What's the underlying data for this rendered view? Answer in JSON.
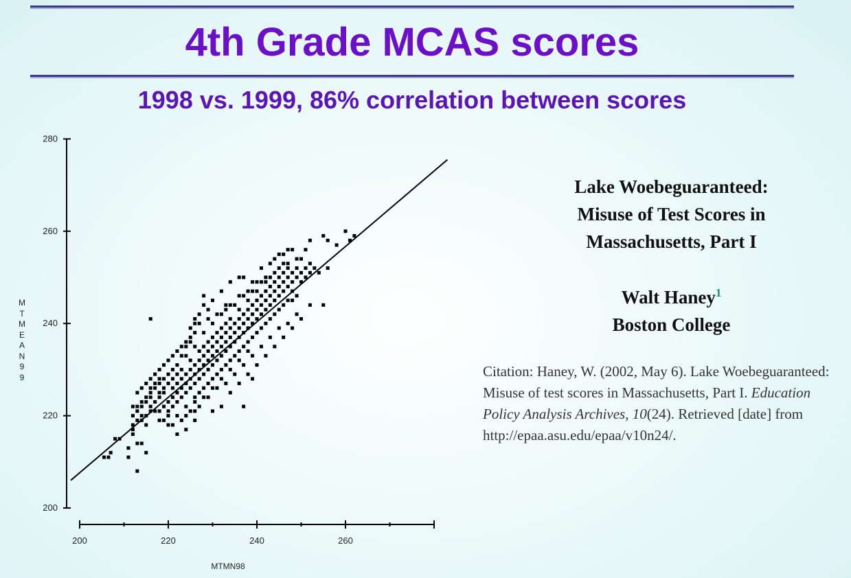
{
  "slide": {
    "title": "4th Grade MCAS scores",
    "subtitle": "1998 vs. 1999, 86% correlation between scores"
  },
  "paper": {
    "title": "Lake Woebeguaranteed:\nMisuse of Test Scores in\nMassachusetts, Part I",
    "author": "Walt Haney",
    "footnote_mark": "1",
    "affiliation": "Boston College"
  },
  "citation": {
    "prefix": "Citation: Haney, W. (2002, May 6). Lake Woebeguaranteed: Misuse of test scores in Massachusetts, Part I. ",
    "journal": "Education Policy Analysis Archives, 10",
    "issue": "(24). Retrieved [date] from http://epaa.asu.edu/epaa/v10n24/."
  },
  "chart_data": {
    "type": "scatter",
    "xlabel": "MTMN98",
    "ylabel": "MTMEAN99",
    "xlim": [
      200,
      280
    ],
    "ylim": [
      200,
      280
    ],
    "x_ticks": [
      200,
      220,
      240,
      260
    ],
    "y_ticks": [
      200,
      220,
      240,
      260,
      280
    ],
    "fit_line": {
      "x": [
        198,
        283
      ],
      "y": [
        206.0,
        275.5
      ]
    },
    "series": [
      {
        "points": [
          [
            205.5,
            211
          ],
          [
            206.5,
            211
          ],
          [
            207,
            212
          ],
          [
            208,
            215
          ],
          [
            209,
            215
          ],
          [
            212,
            220
          ],
          [
            212,
            222
          ],
          [
            212,
            217
          ],
          [
            213,
            208
          ],
          [
            213,
            214
          ],
          [
            214,
            219
          ],
          [
            214,
            214
          ],
          [
            215,
            212
          ],
          [
            216,
            241
          ],
          [
            212,
            216
          ],
          [
            211,
            211
          ],
          [
            211,
            213
          ],
          [
            213,
            222
          ],
          [
            214,
            223
          ],
          [
            215,
            224
          ],
          [
            215,
            220
          ],
          [
            216,
            226
          ],
          [
            216,
            222
          ],
          [
            217,
            227
          ],
          [
            217,
            221
          ],
          [
            218,
            219
          ],
          [
            218,
            224
          ],
          [
            219,
            225
          ],
          [
            219,
            222
          ],
          [
            220,
            221
          ],
          [
            220,
            223
          ],
          [
            221,
            226
          ],
          [
            221,
            224
          ],
          [
            221,
            222
          ],
          [
            222,
            223
          ],
          [
            222,
            225
          ],
          [
            222,
            227
          ],
          [
            223,
            228
          ],
          [
            223,
            226
          ],
          [
            223,
            224
          ],
          [
            224,
            225
          ],
          [
            224,
            227
          ],
          [
            224,
            229
          ],
          [
            225,
            226
          ],
          [
            225,
            228
          ],
          [
            225,
            230
          ],
          [
            226,
            224
          ],
          [
            226,
            227
          ],
          [
            226,
            229
          ],
          [
            226,
            231
          ],
          [
            227,
            228
          ],
          [
            227,
            230
          ],
          [
            227,
            232
          ],
          [
            227,
            225
          ],
          [
            228,
            229
          ],
          [
            228,
            231
          ],
          [
            228,
            233
          ],
          [
            228,
            235
          ],
          [
            229,
            230
          ],
          [
            229,
            232
          ],
          [
            229,
            234
          ],
          [
            229,
            227
          ],
          [
            230,
            231
          ],
          [
            230,
            233
          ],
          [
            230,
            235
          ],
          [
            230,
            237
          ],
          [
            231,
            232
          ],
          [
            231,
            234
          ],
          [
            231,
            236
          ],
          [
            231,
            229
          ],
          [
            232,
            233
          ],
          [
            232,
            235
          ],
          [
            232,
            237
          ],
          [
            232,
            239
          ],
          [
            233,
            234
          ],
          [
            233,
            236
          ],
          [
            233,
            238
          ],
          [
            233,
            231
          ],
          [
            234,
            235
          ],
          [
            234,
            237
          ],
          [
            234,
            239
          ],
          [
            234,
            241
          ],
          [
            235,
            236
          ],
          [
            235,
            238
          ],
          [
            235,
            240
          ],
          [
            235,
            233
          ],
          [
            236,
            237
          ],
          [
            236,
            239
          ],
          [
            236,
            241
          ],
          [
            236,
            243
          ],
          [
            237,
            238
          ],
          [
            237,
            240
          ],
          [
            237,
            242
          ],
          [
            237,
            235
          ],
          [
            238,
            239
          ],
          [
            238,
            241
          ],
          [
            238,
            243
          ],
          [
            238,
            245
          ],
          [
            239,
            240
          ],
          [
            239,
            242
          ],
          [
            239,
            244
          ],
          [
            239,
            237
          ],
          [
            240,
            241
          ],
          [
            240,
            243
          ],
          [
            240,
            245
          ],
          [
            240,
            247
          ],
          [
            241,
            242
          ],
          [
            241,
            244
          ],
          [
            241,
            246
          ],
          [
            241,
            239
          ],
          [
            242,
            243
          ],
          [
            242,
            245
          ],
          [
            242,
            247
          ],
          [
            242,
            249
          ],
          [
            243,
            244
          ],
          [
            243,
            246
          ],
          [
            243,
            248
          ],
          [
            243,
            241
          ],
          [
            244,
            245
          ],
          [
            244,
            247
          ],
          [
            244,
            249
          ],
          [
            244,
            251
          ],
          [
            245,
            246
          ],
          [
            245,
            248
          ],
          [
            245,
            250
          ],
          [
            245,
            243
          ],
          [
            246,
            247
          ],
          [
            246,
            249
          ],
          [
            246,
            251
          ],
          [
            246,
            253
          ],
          [
            247,
            248
          ],
          [
            247,
            250
          ],
          [
            247,
            252
          ],
          [
            247,
            245
          ],
          [
            248,
            249
          ],
          [
            248,
            251
          ],
          [
            248,
            247
          ],
          [
            249,
            250
          ],
          [
            249,
            252
          ],
          [
            249,
            246
          ],
          [
            250,
            251
          ],
          [
            250,
            249
          ],
          [
            250,
            254
          ],
          [
            251,
            252
          ],
          [
            251,
            250
          ],
          [
            252,
            251
          ],
          [
            252,
            253
          ],
          [
            253,
            252
          ],
          [
            254,
            251
          ],
          [
            255,
            244
          ],
          [
            239,
            228
          ],
          [
            237,
            222
          ],
          [
            228,
            246
          ],
          [
            226,
            238
          ],
          [
            225,
            236
          ],
          [
            218,
            228
          ],
          [
            220,
            218
          ],
          [
            222,
            216
          ],
          [
            224,
            217
          ],
          [
            226,
            219
          ],
          [
            230,
            221
          ],
          [
            232,
            222
          ],
          [
            234,
            225
          ],
          [
            236,
            227
          ],
          [
            238,
            229
          ],
          [
            240,
            231
          ],
          [
            242,
            233
          ],
          [
            244,
            235
          ],
          [
            246,
            237
          ],
          [
            248,
            239
          ],
          [
            250,
            241
          ],
          [
            252,
            244
          ],
          [
            251,
            256
          ],
          [
            252,
            258
          ],
          [
            255,
            259
          ],
          [
            256,
            258
          ],
          [
            258,
            257
          ],
          [
            260,
            260
          ],
          [
            261,
            258
          ],
          [
            262,
            259
          ],
          [
            256,
            252
          ],
          [
            244,
            254
          ],
          [
            245,
            255
          ],
          [
            246,
            255
          ],
          [
            243,
            253
          ],
          [
            241,
            252
          ],
          [
            239,
            249
          ],
          [
            237,
            250
          ],
          [
            236,
            250
          ],
          [
            234,
            249
          ],
          [
            232,
            247
          ],
          [
            230,
            245
          ],
          [
            228,
            244
          ],
          [
            233,
            244
          ],
          [
            229,
            243
          ],
          [
            227,
            240
          ],
          [
            226,
            240
          ],
          [
            225,
            237
          ],
          [
            224,
            235
          ],
          [
            223,
            233
          ],
          [
            222,
            231
          ],
          [
            221,
            230
          ],
          [
            220,
            229
          ],
          [
            219,
            228
          ],
          [
            218,
            227
          ],
          [
            217,
            226
          ],
          [
            216,
            225
          ],
          [
            215,
            223
          ],
          [
            214,
            222
          ],
          [
            213,
            221
          ],
          [
            213,
            225
          ],
          [
            214,
            226
          ],
          [
            215,
            227
          ],
          [
            216,
            228
          ],
          [
            217,
            229
          ],
          [
            218,
            230
          ],
          [
            219,
            231
          ],
          [
            220,
            232
          ],
          [
            221,
            233
          ],
          [
            222,
            234
          ],
          [
            223,
            235
          ],
          [
            224,
            236
          ],
          [
            225,
            239
          ],
          [
            226,
            241
          ],
          [
            227,
            242
          ],
          [
            229,
            241
          ],
          [
            231,
            242
          ],
          [
            233,
            243
          ],
          [
            235,
            244
          ],
          [
            237,
            246
          ],
          [
            239,
            247
          ],
          [
            241,
            249
          ],
          [
            243,
            250
          ],
          [
            245,
            252
          ],
          [
            247,
            253
          ],
          [
            249,
            254
          ],
          [
            248,
            256
          ],
          [
            247,
            256
          ],
          [
            219,
            219
          ],
          [
            221,
            218
          ],
          [
            223,
            219
          ],
          [
            225,
            221
          ],
          [
            227,
            222
          ],
          [
            229,
            224
          ],
          [
            231,
            226
          ],
          [
            233,
            227
          ],
          [
            235,
            229
          ],
          [
            237,
            231
          ],
          [
            239,
            233
          ],
          [
            241,
            235
          ],
          [
            243,
            237
          ],
          [
            245,
            239
          ],
          [
            247,
            240
          ],
          [
            249,
            242
          ],
          [
            238,
            236
          ],
          [
            236,
            234
          ],
          [
            234,
            232
          ],
          [
            232,
            230
          ],
          [
            230,
            228
          ],
          [
            228,
            226
          ],
          [
            226,
            223
          ],
          [
            224,
            222
          ],
          [
            222,
            220
          ],
          [
            220,
            220
          ],
          [
            218,
            221
          ],
          [
            217,
            223
          ],
          [
            216,
            224
          ],
          [
            231,
            238
          ],
          [
            233,
            240
          ],
          [
            229,
            236
          ],
          [
            227,
            234
          ],
          [
            225,
            232
          ],
          [
            223,
            230
          ],
          [
            221,
            228
          ],
          [
            219,
            226
          ],
          [
            240,
            249
          ],
          [
            242,
            250
          ],
          [
            238,
            247
          ],
          [
            236,
            246
          ],
          [
            234,
            244
          ],
          [
            232,
            242
          ],
          [
            230,
            240
          ],
          [
            228,
            238
          ],
          [
            226,
            235
          ],
          [
            224,
            233
          ],
          [
            222,
            229
          ],
          [
            220,
            227
          ],
          [
            218,
            225
          ],
          [
            244,
            242
          ],
          [
            246,
            244
          ],
          [
            248,
            245
          ],
          [
            242,
            240
          ],
          [
            240,
            238
          ],
          [
            238,
            234
          ],
          [
            236,
            232
          ],
          [
            234,
            230
          ],
          [
            232,
            228
          ],
          [
            230,
            226
          ],
          [
            228,
            224
          ],
          [
            226,
            221
          ],
          [
            224,
            220
          ],
          [
            213,
            219
          ],
          [
            215,
            218
          ],
          [
            212,
            218
          ],
          [
            214,
            220
          ],
          [
            216,
            221
          ]
        ]
      }
    ]
  }
}
